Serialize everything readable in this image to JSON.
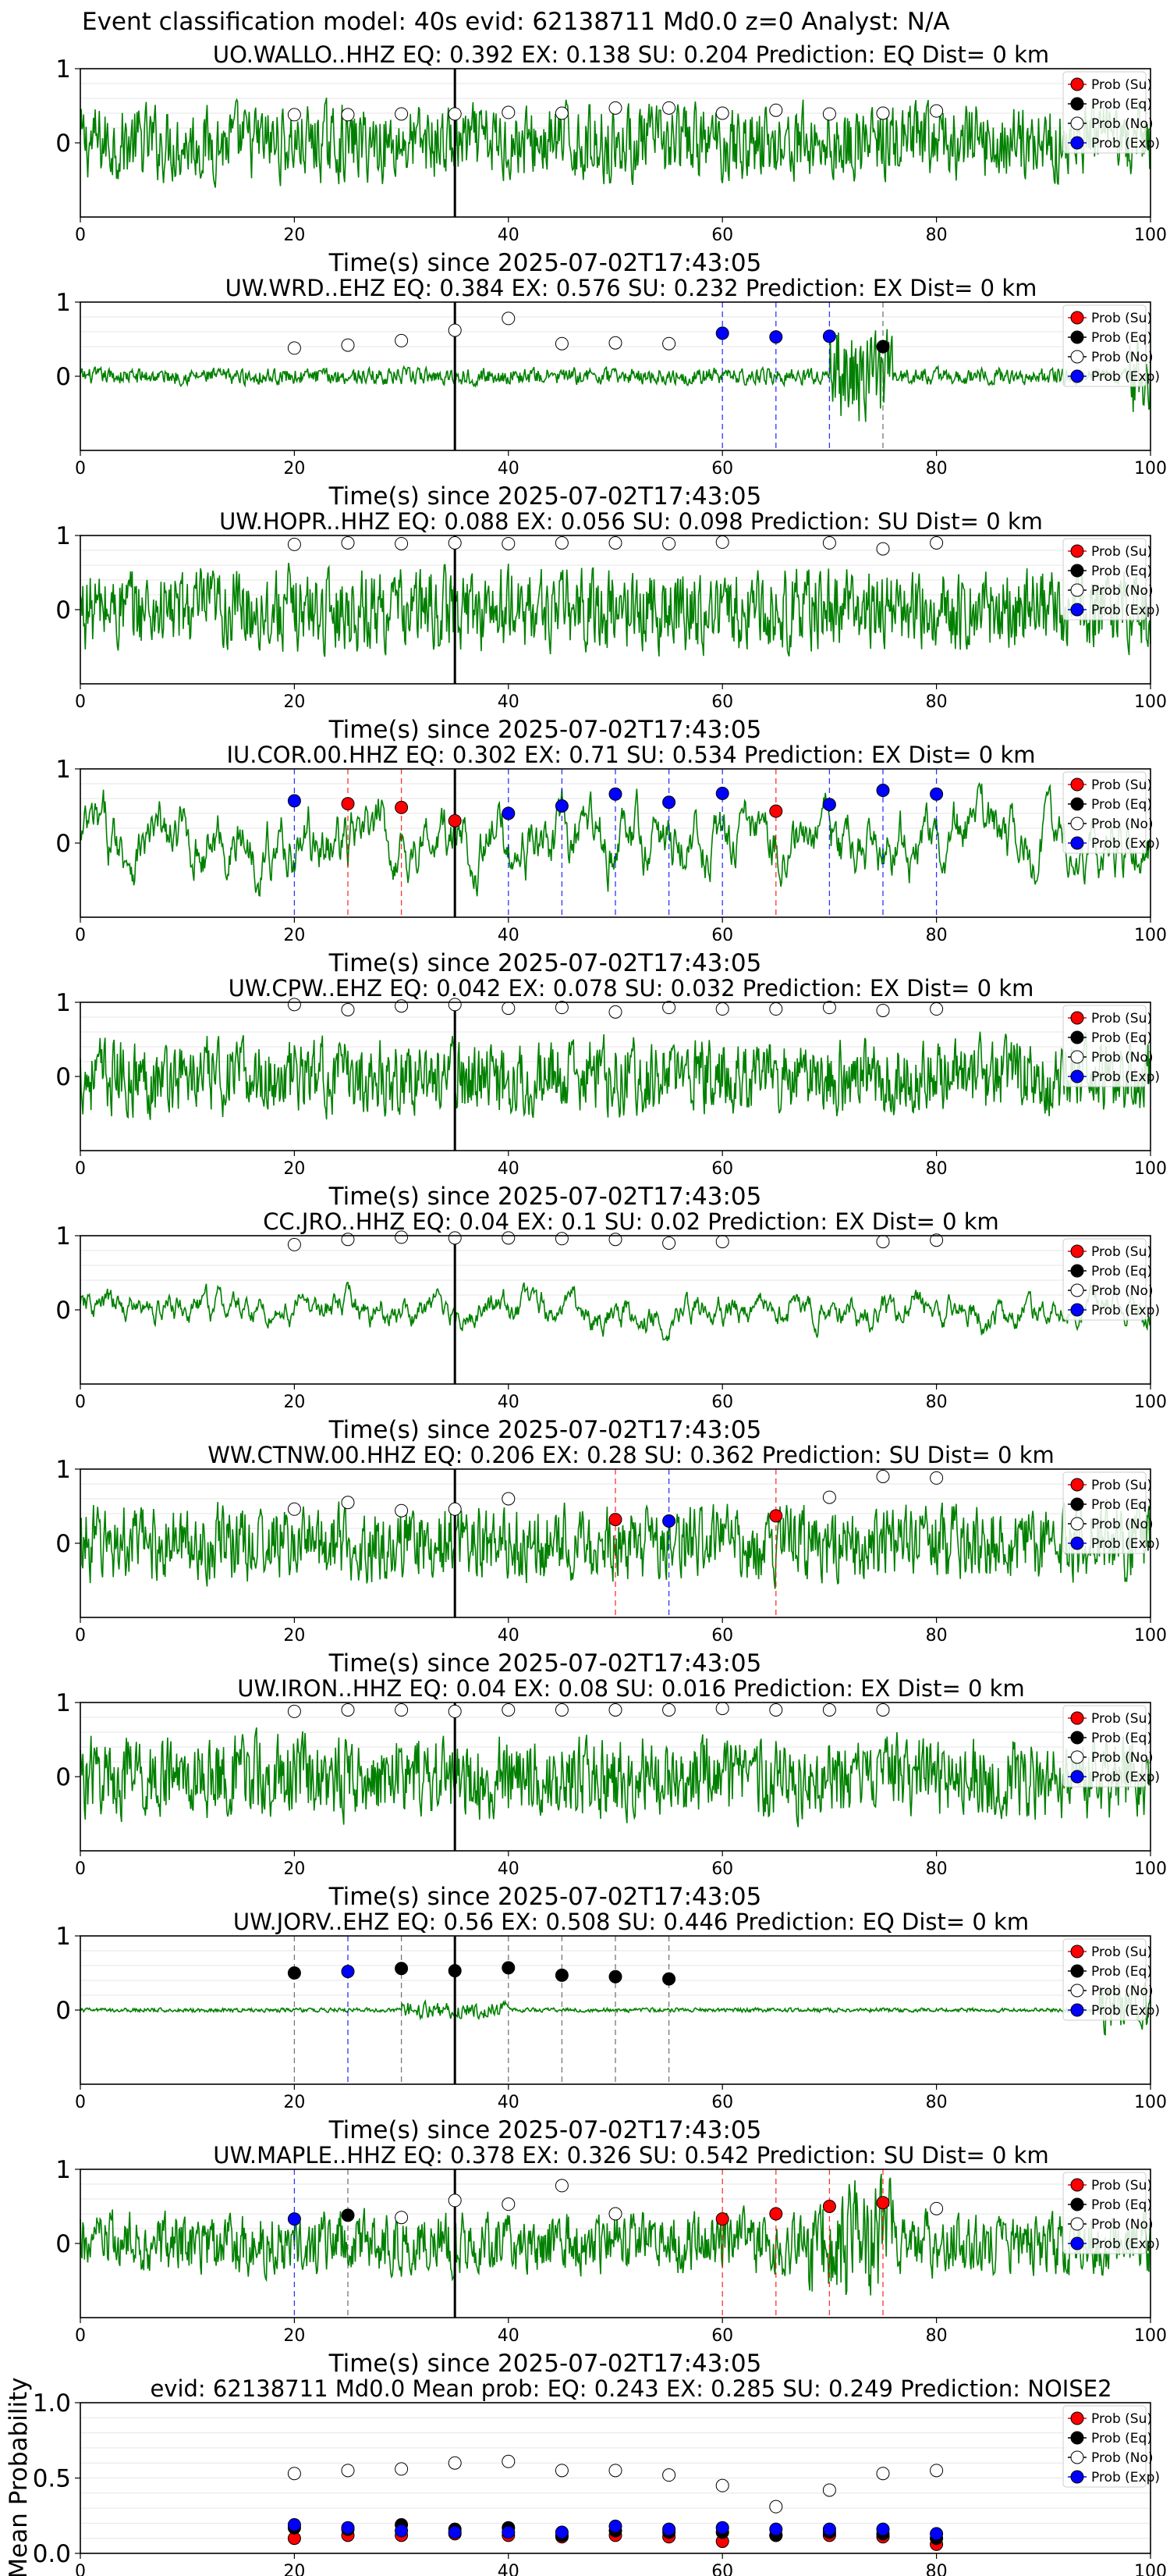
{
  "suptitle": "Event classification model: 40s evid: 62138711 Md0.0 z=0 Analyst: N/A",
  "colors": {
    "waveform": "#008000",
    "su": "#ff0000",
    "eq": "#000000",
    "no": "#ffffff",
    "exp": "#0000ff",
    "arrival": "#000000"
  },
  "legend_labels": [
    "Prob (Su)",
    "Prob (Eq)",
    "Prob (No)",
    "Prob (Exp)"
  ],
  "x_ticks": [
    0,
    20,
    40,
    60,
    80,
    100
  ],
  "chart_data": [
    {
      "type": "line",
      "title": "UO.WALLO..HHZ   EQ: 0.392  EX: 0.138  SU: 0.204   Prediction: EQ    Dist= 0 km",
      "xlabel": "Time(s) since 2025-07-02T17:43:05",
      "xlim": [
        0,
        100
      ],
      "ylim": [
        -1,
        1
      ],
      "y_ticks": [
        0,
        1
      ],
      "arrival_time": 35,
      "noise_amplitude": 0.55,
      "legend_position": "top-right",
      "points": [
        {
          "t": 20,
          "p": 0.38,
          "cls": "No"
        },
        {
          "t": 25,
          "p": 0.38,
          "cls": "No"
        },
        {
          "t": 30,
          "p": 0.39,
          "cls": "No"
        },
        {
          "t": 35,
          "p": 0.39,
          "cls": "No"
        },
        {
          "t": 40,
          "p": 0.41,
          "cls": "No"
        },
        {
          "t": 45,
          "p": 0.4,
          "cls": "No"
        },
        {
          "t": 50,
          "p": 0.47,
          "cls": "No"
        },
        {
          "t": 55,
          "p": 0.47,
          "cls": "No"
        },
        {
          "t": 60,
          "p": 0.4,
          "cls": "No"
        },
        {
          "t": 65,
          "p": 0.44,
          "cls": "No"
        },
        {
          "t": 70,
          "p": 0.39,
          "cls": "No"
        },
        {
          "t": 75,
          "p": 0.4,
          "cls": "No"
        },
        {
          "t": 80,
          "p": 0.43,
          "cls": "No"
        }
      ]
    },
    {
      "type": "line",
      "title": "UW.WRD..EHZ   EQ: 0.384  EX: 0.576  SU: 0.232   Prediction: EX    Dist= 0 km",
      "xlabel": "Time(s) since 2025-07-02T17:43:05",
      "xlim": [
        0,
        100
      ],
      "ylim": [
        -1,
        1
      ],
      "y_ticks": [
        0,
        1
      ],
      "arrival_time": 35,
      "noise_amplitude": 0.12,
      "legend_position": "top-right",
      "points": [
        {
          "t": 20,
          "p": 0.38,
          "cls": "No"
        },
        {
          "t": 25,
          "p": 0.42,
          "cls": "No"
        },
        {
          "t": 30,
          "p": 0.48,
          "cls": "No"
        },
        {
          "t": 35,
          "p": 0.62,
          "cls": "No"
        },
        {
          "t": 40,
          "p": 0.78,
          "cls": "No"
        },
        {
          "t": 45,
          "p": 0.44,
          "cls": "No"
        },
        {
          "t": 50,
          "p": 0.45,
          "cls": "No"
        },
        {
          "t": 55,
          "p": 0.44,
          "cls": "No"
        },
        {
          "t": 60,
          "p": 0.58,
          "cls": "Exp"
        },
        {
          "t": 65,
          "p": 0.53,
          "cls": "Exp"
        },
        {
          "t": 70,
          "p": 0.54,
          "cls": "Exp"
        },
        {
          "t": 75,
          "p": 0.4,
          "cls": "Eq"
        }
      ]
    },
    {
      "type": "line",
      "title": "UW.HOPR..HHZ   EQ: 0.088  EX: 0.056  SU: 0.098   Prediction: SU    Dist= 0 km",
      "xlabel": "Time(s) since 2025-07-02T17:43:05",
      "xlim": [
        0,
        100
      ],
      "ylim": [
        -1,
        1
      ],
      "y_ticks": [
        0,
        1
      ],
      "arrival_time": 35,
      "noise_amplitude": 0.6,
      "legend_position": "top-right",
      "points": [
        {
          "t": 20,
          "p": 0.88,
          "cls": "No"
        },
        {
          "t": 25,
          "p": 0.9,
          "cls": "No"
        },
        {
          "t": 30,
          "p": 0.89,
          "cls": "No"
        },
        {
          "t": 35,
          "p": 0.9,
          "cls": "No"
        },
        {
          "t": 40,
          "p": 0.89,
          "cls": "No"
        },
        {
          "t": 45,
          "p": 0.9,
          "cls": "No"
        },
        {
          "t": 50,
          "p": 0.9,
          "cls": "No"
        },
        {
          "t": 55,
          "p": 0.89,
          "cls": "No"
        },
        {
          "t": 60,
          "p": 0.91,
          "cls": "No"
        },
        {
          "t": 70,
          "p": 0.9,
          "cls": "No"
        },
        {
          "t": 75,
          "p": 0.82,
          "cls": "No"
        },
        {
          "t": 80,
          "p": 0.9,
          "cls": "No"
        }
      ]
    },
    {
      "type": "line",
      "title": "IU.COR.00.HHZ   EQ: 0.302  EX: 0.71  SU: 0.534   Prediction: EX    Dist= 0 km",
      "xlabel": "Time(s) since 2025-07-02T17:43:05",
      "xlim": [
        0,
        100
      ],
      "ylim": [
        -1,
        1
      ],
      "y_ticks": [
        0,
        1
      ],
      "arrival_time": 35,
      "noise_amplitude": 0.5,
      "legend_position": "top-right",
      "points": [
        {
          "t": 20,
          "p": 0.57,
          "cls": "Exp"
        },
        {
          "t": 25,
          "p": 0.53,
          "cls": "Su"
        },
        {
          "t": 30,
          "p": 0.48,
          "cls": "Su"
        },
        {
          "t": 35,
          "p": 0.3,
          "cls": "Su"
        },
        {
          "t": 40,
          "p": 0.4,
          "cls": "Exp"
        },
        {
          "t": 45,
          "p": 0.5,
          "cls": "Exp"
        },
        {
          "t": 50,
          "p": 0.66,
          "cls": "Exp"
        },
        {
          "t": 55,
          "p": 0.55,
          "cls": "Exp"
        },
        {
          "t": 60,
          "p": 0.67,
          "cls": "Exp"
        },
        {
          "t": 65,
          "p": 0.43,
          "cls": "Su"
        },
        {
          "t": 70,
          "p": 0.52,
          "cls": "Exp"
        },
        {
          "t": 75,
          "p": 0.71,
          "cls": "Exp"
        },
        {
          "t": 80,
          "p": 0.66,
          "cls": "Exp"
        }
      ]
    },
    {
      "type": "line",
      "title": "UW.CPW..EHZ   EQ: 0.042  EX: 0.078  SU: 0.032   Prediction: EX    Dist= 0 km",
      "xlabel": "Time(s) since 2025-07-02T17:43:05",
      "xlim": [
        0,
        100
      ],
      "ylim": [
        -1,
        1
      ],
      "y_ticks": [
        0,
        1
      ],
      "arrival_time": 35,
      "noise_amplitude": 0.55,
      "legend_position": "top-right",
      "points": [
        {
          "t": 20,
          "p": 0.97,
          "cls": "No"
        },
        {
          "t": 25,
          "p": 0.9,
          "cls": "No"
        },
        {
          "t": 30,
          "p": 0.95,
          "cls": "No"
        },
        {
          "t": 35,
          "p": 0.97,
          "cls": "No"
        },
        {
          "t": 40,
          "p": 0.92,
          "cls": "No"
        },
        {
          "t": 45,
          "p": 0.93,
          "cls": "No"
        },
        {
          "t": 50,
          "p": 0.87,
          "cls": "No"
        },
        {
          "t": 55,
          "p": 0.93,
          "cls": "No"
        },
        {
          "t": 60,
          "p": 0.91,
          "cls": "No"
        },
        {
          "t": 65,
          "p": 0.91,
          "cls": "No"
        },
        {
          "t": 70,
          "p": 0.93,
          "cls": "No"
        },
        {
          "t": 75,
          "p": 0.89,
          "cls": "No"
        },
        {
          "t": 80,
          "p": 0.91,
          "cls": "No"
        }
      ]
    },
    {
      "type": "line",
      "title": "CC.JRO..HHZ   EQ: 0.04  EX: 0.1  SU: 0.02   Prediction: EX    Dist= 0 km",
      "xlabel": "Time(s) since 2025-07-02T17:43:05",
      "xlim": [
        0,
        100
      ],
      "ylim": [
        -1,
        1
      ],
      "y_ticks": [
        0,
        1
      ],
      "arrival_time": 35,
      "noise_amplitude": 0.25,
      "legend_position": "top-right",
      "points": [
        {
          "t": 20,
          "p": 0.88,
          "cls": "No"
        },
        {
          "t": 25,
          "p": 0.95,
          "cls": "No"
        },
        {
          "t": 30,
          "p": 0.98,
          "cls": "No"
        },
        {
          "t": 35,
          "p": 0.97,
          "cls": "No"
        },
        {
          "t": 40,
          "p": 0.97,
          "cls": "No"
        },
        {
          "t": 45,
          "p": 0.96,
          "cls": "No"
        },
        {
          "t": 50,
          "p": 0.95,
          "cls": "No"
        },
        {
          "t": 55,
          "p": 0.9,
          "cls": "No"
        },
        {
          "t": 60,
          "p": 0.92,
          "cls": "No"
        },
        {
          "t": 75,
          "p": 0.92,
          "cls": "No"
        },
        {
          "t": 80,
          "p": 0.94,
          "cls": "No"
        }
      ]
    },
    {
      "type": "line",
      "title": "WW.CTNW.00.HHZ   EQ: 0.206  EX: 0.28  SU: 0.362   Prediction: SU    Dist= 0 km",
      "xlabel": "Time(s) since 2025-07-02T17:43:05",
      "xlim": [
        0,
        100
      ],
      "ylim": [
        -1,
        1
      ],
      "y_ticks": [
        0,
        1
      ],
      "arrival_time": 35,
      "noise_amplitude": 0.55,
      "legend_position": "top-right",
      "points": [
        {
          "t": 20,
          "p": 0.46,
          "cls": "No"
        },
        {
          "t": 25,
          "p": 0.55,
          "cls": "No"
        },
        {
          "t": 30,
          "p": 0.44,
          "cls": "No"
        },
        {
          "t": 35,
          "p": 0.46,
          "cls": "No"
        },
        {
          "t": 40,
          "p": 0.6,
          "cls": "No"
        },
        {
          "t": 50,
          "p": 0.32,
          "cls": "Su"
        },
        {
          "t": 55,
          "p": 0.3,
          "cls": "Exp"
        },
        {
          "t": 65,
          "p": 0.37,
          "cls": "Su"
        },
        {
          "t": 70,
          "p": 0.62,
          "cls": "No"
        },
        {
          "t": 75,
          "p": 0.9,
          "cls": "No"
        },
        {
          "t": 80,
          "p": 0.88,
          "cls": "No"
        }
      ]
    },
    {
      "type": "line",
      "title": "UW.IRON..HHZ   EQ: 0.04  EX: 0.08  SU: 0.016   Prediction: EX    Dist= 0 km",
      "xlabel": "Time(s) since 2025-07-02T17:43:05",
      "xlim": [
        0,
        100
      ],
      "ylim": [
        -1,
        1
      ],
      "y_ticks": [
        0,
        1
      ],
      "arrival_time": 35,
      "noise_amplitude": 0.6,
      "legend_position": "top-right",
      "points": [
        {
          "t": 20,
          "p": 0.88,
          "cls": "No"
        },
        {
          "t": 25,
          "p": 0.9,
          "cls": "No"
        },
        {
          "t": 30,
          "p": 0.9,
          "cls": "No"
        },
        {
          "t": 35,
          "p": 0.88,
          "cls": "No"
        },
        {
          "t": 40,
          "p": 0.9,
          "cls": "No"
        },
        {
          "t": 45,
          "p": 0.9,
          "cls": "No"
        },
        {
          "t": 50,
          "p": 0.9,
          "cls": "No"
        },
        {
          "t": 55,
          "p": 0.9,
          "cls": "No"
        },
        {
          "t": 60,
          "p": 0.92,
          "cls": "No"
        },
        {
          "t": 65,
          "p": 0.9,
          "cls": "No"
        },
        {
          "t": 70,
          "p": 0.9,
          "cls": "No"
        },
        {
          "t": 75,
          "p": 0.9,
          "cls": "No"
        }
      ]
    },
    {
      "type": "line",
      "title": "UW.JORV..EHZ   EQ: 0.56  EX: 0.508  SU: 0.446   Prediction: EQ    Dist= 0 km",
      "xlabel": "Time(s) since 2025-07-02T17:43:05",
      "xlim": [
        0,
        100
      ],
      "ylim": [
        -1,
        1
      ],
      "y_ticks": [
        0,
        1
      ],
      "arrival_time": 35,
      "noise_amplitude": 0.03,
      "legend_position": "top-right",
      "points": [
        {
          "t": 20,
          "p": 0.5,
          "cls": "Eq"
        },
        {
          "t": 25,
          "p": 0.52,
          "cls": "Exp"
        },
        {
          "t": 30,
          "p": 0.56,
          "cls": "Eq"
        },
        {
          "t": 35,
          "p": 0.53,
          "cls": "Eq"
        },
        {
          "t": 40,
          "p": 0.57,
          "cls": "Eq"
        },
        {
          "t": 45,
          "p": 0.47,
          "cls": "Eq"
        },
        {
          "t": 50,
          "p": 0.45,
          "cls": "Eq"
        },
        {
          "t": 55,
          "p": 0.42,
          "cls": "Eq"
        }
      ]
    },
    {
      "type": "line",
      "title": "UW.MAPLE..HHZ   EQ: 0.378  EX: 0.326  SU: 0.542   Prediction: SU    Dist= 0 km",
      "xlabel": "Time(s) since 2025-07-02T17:43:05",
      "xlim": [
        0,
        100
      ],
      "ylim": [
        -1,
        1
      ],
      "y_ticks": [
        0,
        1
      ],
      "arrival_time": 35,
      "noise_amplitude": 0.45,
      "legend_position": "top-right",
      "points": [
        {
          "t": 20,
          "p": 0.33,
          "cls": "Exp"
        },
        {
          "t": 25,
          "p": 0.38,
          "cls": "Eq"
        },
        {
          "t": 30,
          "p": 0.35,
          "cls": "No"
        },
        {
          "t": 35,
          "p": 0.58,
          "cls": "No"
        },
        {
          "t": 40,
          "p": 0.53,
          "cls": "No"
        },
        {
          "t": 45,
          "p": 0.78,
          "cls": "No"
        },
        {
          "t": 50,
          "p": 0.4,
          "cls": "No"
        },
        {
          "t": 60,
          "p": 0.33,
          "cls": "Su"
        },
        {
          "t": 65,
          "p": 0.4,
          "cls": "Su"
        },
        {
          "t": 70,
          "p": 0.5,
          "cls": "Su"
        },
        {
          "t": 75,
          "p": 0.55,
          "cls": "Su"
        },
        {
          "t": 80,
          "p": 0.47,
          "cls": "No"
        }
      ]
    },
    {
      "type": "scatter",
      "title": "evid: 62138711  Md0.0   Mean prob:   EQ: 0.243  EX: 0.285  SU: 0.249   Prediction: NOISE2",
      "xlabel": "",
      "ylabel": "Mean Probability",
      "xlim": [
        0,
        100
      ],
      "ylim": [
        0,
        1
      ],
      "y_ticks": [
        0.0,
        0.5,
        1.0
      ],
      "legend_position": "top-right",
      "x": [
        20,
        25,
        30,
        35,
        40,
        45,
        50,
        55,
        60,
        65,
        70,
        75,
        80
      ],
      "series": [
        {
          "name": "Prob (Su)",
          "values": [
            0.1,
            0.12,
            0.12,
            0.13,
            0.12,
            0.11,
            0.12,
            0.11,
            0.08,
            0.12,
            0.12,
            0.11,
            0.06
          ]
        },
        {
          "name": "Prob (Eq)",
          "values": [
            0.17,
            0.16,
            0.19,
            0.16,
            0.17,
            0.12,
            0.15,
            0.14,
            0.14,
            0.12,
            0.14,
            0.13,
            0.1
          ]
        },
        {
          "name": "Prob (No)",
          "values": [
            0.53,
            0.55,
            0.56,
            0.6,
            0.61,
            0.55,
            0.55,
            0.52,
            0.45,
            0.31,
            0.42,
            0.53,
            0.55
          ]
        },
        {
          "name": "Prob (Exp)",
          "values": [
            0.19,
            0.17,
            0.15,
            0.14,
            0.14,
            0.14,
            0.18,
            0.16,
            0.17,
            0.16,
            0.16,
            0.16,
            0.13
          ]
        }
      ]
    }
  ]
}
